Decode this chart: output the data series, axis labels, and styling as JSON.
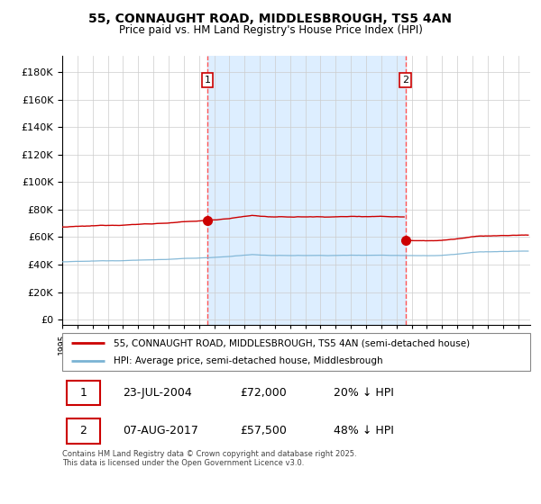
{
  "title_line1": "55, CONNAUGHT ROAD, MIDDLESBROUGH, TS5 4AN",
  "title_line2": "Price paid vs. HM Land Registry's House Price Index (HPI)",
  "legend_line1": "55, CONNAUGHT ROAD, MIDDLESBROUGH, TS5 4AN (semi-detached house)",
  "legend_line2": "HPI: Average price, semi-detached house, Middlesbrough",
  "annotation1_date": "23-JUL-2004",
  "annotation1_price": "£72,000",
  "annotation1_hpi": "20% ↓ HPI",
  "annotation1_year": 2004.56,
  "annotation1_value": 72000,
  "annotation2_date": "07-AUG-2017",
  "annotation2_price": "£57,500",
  "annotation2_hpi": "48% ↓ HPI",
  "annotation2_year": 2017.6,
  "annotation2_value": 57500,
  "yticks": [
    0,
    20000,
    40000,
    60000,
    80000,
    100000,
    120000,
    140000,
    160000,
    180000
  ],
  "ylim": [
    -4000,
    192000
  ],
  "xmin": 1995.0,
  "xmax": 2025.8,
  "hpi_color": "#7ab3d4",
  "property_color": "#cc0000",
  "dashed_color": "#ff5555",
  "background_fill": "#ddeeff",
  "grid_color": "#cccccc",
  "footnote": "Contains HM Land Registry data © Crown copyright and database right 2025.\nThis data is licensed under the Open Government Licence v3.0."
}
